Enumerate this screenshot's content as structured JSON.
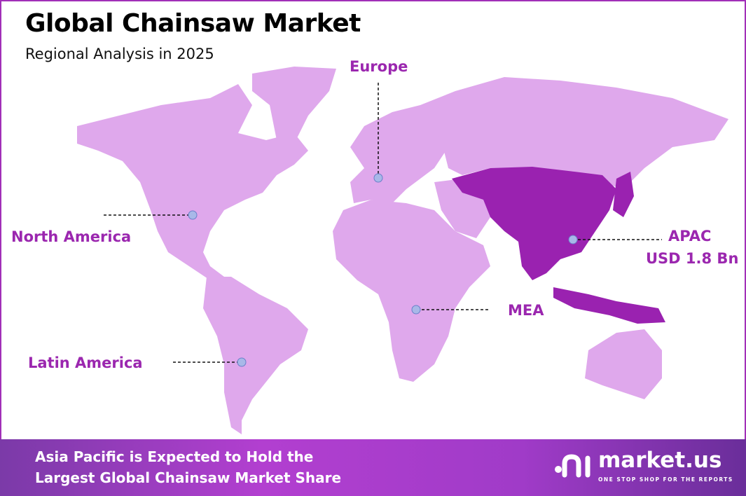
{
  "header": {
    "title": "Global Chainsaw Market",
    "subtitle": "Regional Analysis in 2025"
  },
  "colors": {
    "map_base": "#dfa8ec",
    "highlight": "#9a22b0",
    "label": "#9b27af",
    "border": "#a12fb8"
  },
  "regions": [
    {
      "name": "North America",
      "value": ""
    },
    {
      "name": "Europe",
      "value": ""
    },
    {
      "name": "APAC",
      "value": "USD 1.8 Bn",
      "highlighted": true
    },
    {
      "name": "MEA",
      "value": ""
    },
    {
      "name": "Latin America",
      "value": ""
    }
  ],
  "footer": {
    "line1": "Asia Pacific is Expected to Hold the",
    "line2": "Largest Global Chainsaw Market Share"
  },
  "logo": {
    "name": "market.us",
    "tagline": "ONE STOP SHOP FOR THE REPORTS"
  }
}
